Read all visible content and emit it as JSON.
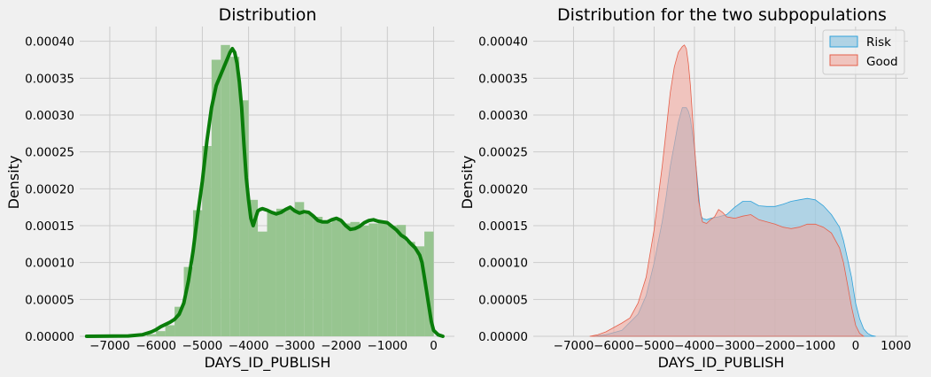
{
  "chart_data": [
    {
      "type": "histogram+kde",
      "title": "Distribution",
      "xlabel": "DAYS_ID_PUBLISH",
      "ylabel": "Density",
      "xlim": [
        -7650,
        450
      ],
      "ylim": [
        0,
        0.00042
      ],
      "xticks": [
        -7000,
        -6000,
        -5000,
        -4000,
        -3000,
        -2000,
        -1000,
        0
      ],
      "xtick_labels": [
        "−7000",
        "−6000",
        "−5000",
        "−4000",
        "−3000",
        "−2000",
        "−1000",
        "0"
      ],
      "yticks": [
        0,
        5e-05,
        0.0001,
        0.00015,
        0.0002,
        0.00025,
        0.0003,
        0.00035,
        0.0004
      ],
      "ytick_labels": [
        "0.00000",
        "0.00005",
        "0.00010",
        "0.00015",
        "0.00020",
        "0.00025",
        "0.00030",
        "0.00035",
        "0.00040"
      ],
      "grid": true,
      "colors": {
        "bars": "#97c590",
        "kde": "#0a7d0a"
      },
      "bins": {
        "edges": [
          -6200,
          -6000,
          -5800,
          -5600,
          -5400,
          -5200,
          -5000,
          -4800,
          -4600,
          -4400,
          -4200,
          -4000,
          -3800,
          -3600,
          -3400,
          -3200,
          -3000,
          -2800,
          -2600,
          -2400,
          -2200,
          -2000,
          -1800,
          -1600,
          -1400,
          -1200,
          -1000,
          -800,
          -600,
          -400,
          -200,
          0
        ],
        "values": [
          3e-06,
          7e-06,
          1.5e-05,
          4e-05,
          9.4e-05,
          0.000171,
          0.000258,
          0.000375,
          0.000395,
          0.000379,
          0.00032,
          0.000185,
          0.000142,
          0.000168,
          0.000173,
          0.000172,
          0.000182,
          0.000166,
          0.000162,
          0.000154,
          0.000157,
          0.000153,
          0.000155,
          0.00015,
          0.000153,
          0.000157,
          0.00015,
          0.000151,
          0.000128,
          0.000122,
          0.000142
        ]
      },
      "kde": {
        "x": [
          -7500,
          -6600,
          -6300,
          -6100,
          -6000,
          -5900,
          -5800,
          -5700,
          -5600,
          -5500,
          -5400,
          -5300,
          -5200,
          -5100,
          -5000,
          -4900,
          -4800,
          -4700,
          -4600,
          -4500,
          -4400,
          -4350,
          -4300,
          -4250,
          -4200,
          -4150,
          -4100,
          -4050,
          -4000,
          -3950,
          -3900,
          -3850,
          -3800,
          -3750,
          -3700,
          -3600,
          -3500,
          -3400,
          -3300,
          -3200,
          -3100,
          -3000,
          -2900,
          -2800,
          -2700,
          -2600,
          -2500,
          -2400,
          -2300,
          -2200,
          -2100,
          -2000,
          -1900,
          -1800,
          -1700,
          -1600,
          -1500,
          -1400,
          -1300,
          -1200,
          -1100,
          -1000,
          -900,
          -800,
          -700,
          -600,
          -500,
          -400,
          -300,
          -250,
          -200,
          -150,
          -100,
          -50,
          0,
          100,
          200
        ],
        "y": [
          0,
          5e-07,
          2e-06,
          6e-06,
          9e-06,
          1.3e-05,
          1.6e-05,
          1.9e-05,
          2.3e-05,
          3e-05,
          4.5e-05,
          7.5e-05,
          0.000115,
          0.000165,
          0.00021,
          0.000265,
          0.00031,
          0.00034,
          0.000355,
          0.00037,
          0.000385,
          0.00039,
          0.000385,
          0.00037,
          0.000345,
          0.00031,
          0.00026,
          0.000215,
          0.000185,
          0.00016,
          0.00015,
          0.00016,
          0.00017,
          0.000172,
          0.000173,
          0.000171,
          0.000168,
          0.000166,
          0.000168,
          0.000172,
          0.000175,
          0.00017,
          0.000167,
          0.000169,
          0.000168,
          0.000163,
          0.000157,
          0.000155,
          0.000155,
          0.000158,
          0.00016,
          0.000157,
          0.00015,
          0.000145,
          0.000146,
          0.000149,
          0.000154,
          0.000157,
          0.000158,
          0.000156,
          0.000155,
          0.000154,
          0.000149,
          0.000144,
          0.000137,
          0.000133,
          0.000126,
          0.00012,
          0.00011,
          0.0001,
          8e-05,
          6e-05,
          4e-05,
          2e-05,
          8e-06,
          2e-06,
          0
        ]
      }
    },
    {
      "type": "area",
      "title": "Distribution for the two subpopulations",
      "xlabel": "DAYS_ID_PUBLISH",
      "ylabel": "Density",
      "xlim": [
        -8000,
        1300
      ],
      "ylim": [
        0,
        0.00042
      ],
      "xticks": [
        -7000,
        -6000,
        -5000,
        -4000,
        -3000,
        -2000,
        -1000,
        0,
        1000
      ],
      "xtick_labels": [
        "−7000",
        "−6000",
        "−5000",
        "−4000",
        "−3000",
        "−2000",
        "−1000",
        "0",
        "1000"
      ],
      "yticks": [
        0,
        5e-05,
        0.0001,
        0.00015,
        0.0002,
        0.00025,
        0.0003,
        0.00035,
        0.0004
      ],
      "ytick_labels": [
        "0.00000",
        "0.00005",
        "0.00010",
        "0.00015",
        "0.00020",
        "0.00025",
        "0.00030",
        "0.00035",
        "0.00040"
      ],
      "grid": true,
      "legend": {
        "position": "top-right",
        "entries": [
          "Risk",
          "Good"
        ]
      },
      "series": [
        {
          "name": "Risk",
          "fill": "#9bc9e2",
          "fill_opacity": 0.75,
          "stroke": "#30a2da",
          "x": [
            -6500,
            -6200,
            -5800,
            -5400,
            -5200,
            -5000,
            -4800,
            -4700,
            -4600,
            -4500,
            -4400,
            -4300,
            -4200,
            -4150,
            -4100,
            -4000,
            -3900,
            -3850,
            -3800,
            -3700,
            -3600,
            -3400,
            -3200,
            -3000,
            -2800,
            -2600,
            -2400,
            -2200,
            -2000,
            -1800,
            -1600,
            -1400,
            -1200,
            -1000,
            -800,
            -600,
            -400,
            -300,
            -200,
            -100,
            0,
            100,
            200,
            300,
            400,
            500
          ],
          "y": [
            0,
            2e-06,
            8e-06,
            3e-05,
            5.5e-05,
            0.0001,
            0.000155,
            0.00019,
            0.00023,
            0.00026,
            0.00029,
            0.00031,
            0.00031,
            0.000305,
            0.000295,
            0.000255,
            0.000195,
            0.000165,
            0.00016,
            0.000158,
            0.00016,
            0.000162,
            0.000165,
            0.000175,
            0.000183,
            0.000183,
            0.000177,
            0.000176,
            0.000176,
            0.000179,
            0.000183,
            0.000185,
            0.000187,
            0.000185,
            0.000177,
            0.000165,
            0.000148,
            0.00013,
            0.000105,
            8e-05,
            4.5e-05,
            2.4e-05,
            1e-05,
            4e-06,
            1e-06,
            0
          ]
        },
        {
          "name": "Good",
          "fill": "#f0a69c",
          "fill_opacity": 0.6,
          "stroke": "#e5604b",
          "x": [
            -6600,
            -6400,
            -6200,
            -6000,
            -5800,
            -5600,
            -5400,
            -5200,
            -5000,
            -4800,
            -4700,
            -4600,
            -4500,
            -4400,
            -4300,
            -4250,
            -4200,
            -4150,
            -4100,
            -4000,
            -3900,
            -3800,
            -3700,
            -3600,
            -3500,
            -3400,
            -3300,
            -3200,
            -3000,
            -2800,
            -2600,
            -2400,
            -2200,
            -2000,
            -1800,
            -1600,
            -1400,
            -1200,
            -1000,
            -800,
            -600,
            -400,
            -300,
            -200,
            -100,
            0,
            100,
            200
          ],
          "y": [
            0,
            2e-06,
            6e-06,
            1.2e-05,
            1.8e-05,
            2.5e-05,
            4.5e-05,
            8e-05,
            0.000145,
            0.00023,
            0.00028,
            0.00033,
            0.000365,
            0.000385,
            0.000393,
            0.000395,
            0.00039,
            0.00037,
            0.00034,
            0.00026,
            0.000185,
            0.000155,
            0.000153,
            0.000158,
            0.000162,
            0.000172,
            0.000168,
            0.000162,
            0.00016,
            0.000163,
            0.000165,
            0.000158,
            0.000155,
            0.000152,
            0.000148,
            0.000146,
            0.000148,
            0.000152,
            0.000152,
            0.000148,
            0.00014,
            0.00012,
            0.0001,
            7e-05,
            4e-05,
            1.5e-05,
            4e-06,
            0
          ]
        }
      ]
    }
  ]
}
